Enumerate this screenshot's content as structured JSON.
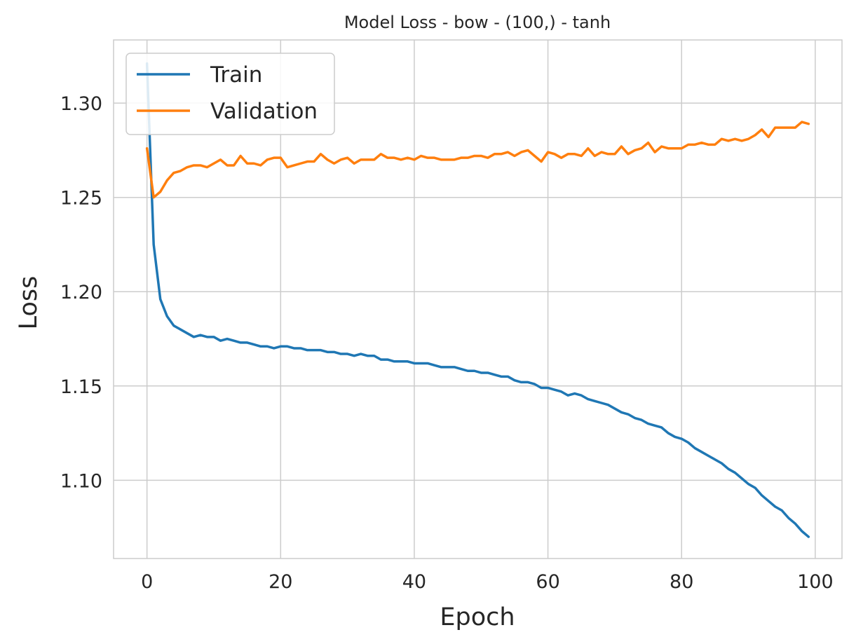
{
  "chart_data": {
    "type": "line",
    "title": "Model Loss - bow - (100,) - tanh",
    "xlabel": "Epoch",
    "ylabel": "Loss",
    "xlim": [
      -5,
      104
    ],
    "ylim": [
      1.0585,
      1.3335
    ],
    "xticks": [
      0,
      20,
      40,
      60,
      80,
      100
    ],
    "yticks": [
      1.1,
      1.15,
      1.2,
      1.25,
      1.3
    ],
    "xtick_labels": [
      "0",
      "20",
      "40",
      "60",
      "80",
      "100"
    ],
    "ytick_labels": [
      "1.10",
      "1.15",
      "1.20",
      "1.25",
      "1.30"
    ],
    "grid": true,
    "legend": {
      "position": "top-left"
    },
    "x": [
      0,
      1,
      2,
      3,
      4,
      5,
      6,
      7,
      8,
      9,
      10,
      11,
      12,
      13,
      14,
      15,
      16,
      17,
      18,
      19,
      20,
      21,
      22,
      23,
      24,
      25,
      26,
      27,
      28,
      29,
      30,
      31,
      32,
      33,
      34,
      35,
      36,
      37,
      38,
      39,
      40,
      41,
      42,
      43,
      44,
      45,
      46,
      47,
      48,
      49,
      50,
      51,
      52,
      53,
      54,
      55,
      56,
      57,
      58,
      59,
      60,
      61,
      62,
      63,
      64,
      65,
      66,
      67,
      68,
      69,
      70,
      71,
      72,
      73,
      74,
      75,
      76,
      77,
      78,
      79,
      80,
      81,
      82,
      83,
      84,
      85,
      86,
      87,
      88,
      89,
      90,
      91,
      92,
      93,
      94,
      95,
      96,
      97,
      98,
      99
    ],
    "series": [
      {
        "name": "Train",
        "color": "#1f77b4",
        "values": [
          1.321,
          1.225,
          1.196,
          1.187,
          1.182,
          1.18,
          1.178,
          1.176,
          1.177,
          1.176,
          1.176,
          1.174,
          1.175,
          1.174,
          1.173,
          1.173,
          1.172,
          1.171,
          1.171,
          1.17,
          1.171,
          1.171,
          1.17,
          1.17,
          1.169,
          1.169,
          1.169,
          1.168,
          1.168,
          1.167,
          1.167,
          1.166,
          1.167,
          1.166,
          1.166,
          1.164,
          1.164,
          1.163,
          1.163,
          1.163,
          1.162,
          1.162,
          1.162,
          1.161,
          1.16,
          1.16,
          1.16,
          1.159,
          1.158,
          1.158,
          1.157,
          1.157,
          1.156,
          1.155,
          1.155,
          1.153,
          1.152,
          1.152,
          1.151,
          1.149,
          1.149,
          1.148,
          1.147,
          1.145,
          1.146,
          1.145,
          1.143,
          1.142,
          1.141,
          1.14,
          1.138,
          1.136,
          1.135,
          1.133,
          1.132,
          1.13,
          1.129,
          1.128,
          1.125,
          1.123,
          1.122,
          1.12,
          1.117,
          1.115,
          1.113,
          1.111,
          1.109,
          1.106,
          1.104,
          1.101,
          1.098,
          1.096,
          1.092,
          1.089,
          1.086,
          1.084,
          1.08,
          1.077,
          1.073,
          1.07
        ]
      },
      {
        "name": "Validation",
        "color": "#ff7f0e",
        "values": [
          1.276,
          1.25,
          1.253,
          1.259,
          1.263,
          1.264,
          1.266,
          1.267,
          1.267,
          1.266,
          1.268,
          1.27,
          1.267,
          1.267,
          1.272,
          1.268,
          1.268,
          1.267,
          1.27,
          1.271,
          1.271,
          1.266,
          1.267,
          1.268,
          1.269,
          1.269,
          1.273,
          1.27,
          1.268,
          1.27,
          1.271,
          1.268,
          1.27,
          1.27,
          1.27,
          1.273,
          1.271,
          1.271,
          1.27,
          1.271,
          1.27,
          1.272,
          1.271,
          1.271,
          1.27,
          1.27,
          1.27,
          1.271,
          1.271,
          1.272,
          1.272,
          1.271,
          1.273,
          1.273,
          1.274,
          1.272,
          1.274,
          1.275,
          1.272,
          1.269,
          1.274,
          1.273,
          1.271,
          1.273,
          1.273,
          1.272,
          1.276,
          1.272,
          1.274,
          1.273,
          1.273,
          1.277,
          1.273,
          1.275,
          1.276,
          1.279,
          1.274,
          1.277,
          1.276,
          1.276,
          1.276,
          1.278,
          1.278,
          1.279,
          1.278,
          1.278,
          1.281,
          1.28,
          1.281,
          1.28,
          1.281,
          1.283,
          1.286,
          1.282,
          1.287,
          1.287,
          1.287,
          1.287,
          1.29,
          1.289
        ]
      }
    ]
  }
}
